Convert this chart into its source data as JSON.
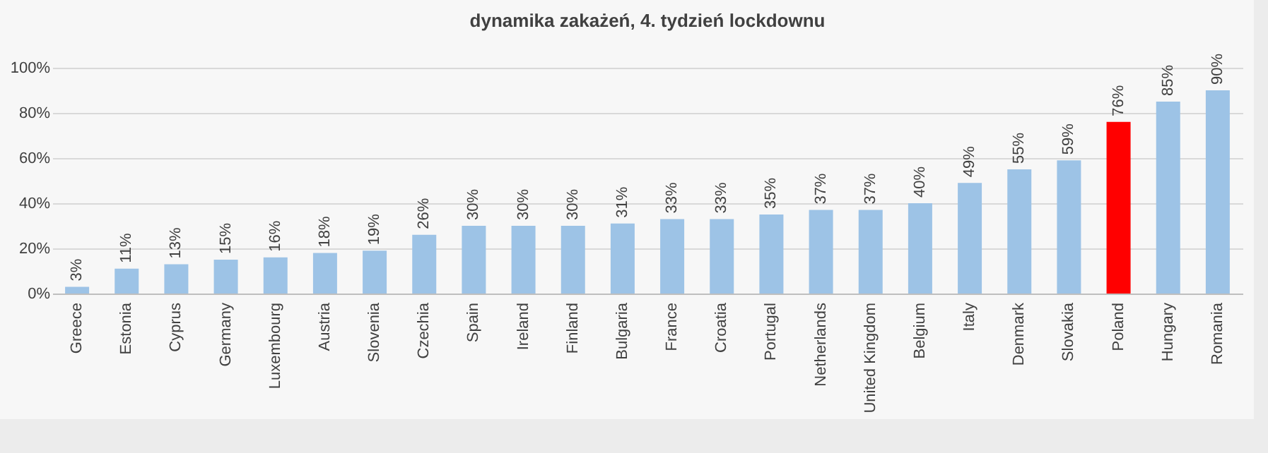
{
  "chart_data": {
    "type": "bar",
    "title": "dynamika zakażeń, 4. tydzień lockdownu",
    "categories": [
      "Greece",
      "Estonia",
      "Cyprus",
      "Germany",
      "Luxembourg",
      "Austria",
      "Slovenia",
      "Czechia",
      "Spain",
      "Ireland",
      "Finland",
      "Bulgaria",
      "France",
      "Croatia",
      "Portugal",
      "Netherlands",
      "United Kingdom",
      "Belgium",
      "Italy",
      "Denmark",
      "Slovakia",
      "Poland",
      "Hungary",
      "Romania"
    ],
    "values": [
      3,
      11,
      13,
      15,
      16,
      18,
      19,
      26,
      30,
      30,
      30,
      31,
      33,
      33,
      35,
      37,
      37,
      40,
      49,
      55,
      59,
      76,
      85,
      90
    ],
    "value_labels": [
      "3%",
      "11%",
      "13%",
      "15%",
      "16%",
      "18%",
      "19%",
      "26%",
      "30%",
      "30%",
      "30%",
      "31%",
      "33%",
      "33%",
      "35%",
      "37%",
      "37%",
      "40%",
      "49%",
      "55%",
      "59%",
      "76%",
      "85%",
      "90%"
    ],
    "colors": [
      "#9dc3e6",
      "#9dc3e6",
      "#9dc3e6",
      "#9dc3e6",
      "#9dc3e6",
      "#9dc3e6",
      "#9dc3e6",
      "#9dc3e6",
      "#9dc3e6",
      "#9dc3e6",
      "#9dc3e6",
      "#9dc3e6",
      "#9dc3e6",
      "#9dc3e6",
      "#9dc3e6",
      "#9dc3e6",
      "#9dc3e6",
      "#9dc3e6",
      "#9dc3e6",
      "#9dc3e6",
      "#9dc3e6",
      "#ff0000",
      "#9dc3e6",
      "#9dc3e6"
    ],
    "ylim": [
      0,
      100
    ],
    "yticks": [
      {
        "value": 0,
        "label": "0%"
      },
      {
        "value": 20,
        "label": "20%"
      },
      {
        "value": 40,
        "label": "40%"
      },
      {
        "value": 60,
        "label": "60%"
      },
      {
        "value": 80,
        "label": "80%"
      },
      {
        "value": 100,
        "label": "100%"
      }
    ],
    "grid": "y"
  }
}
